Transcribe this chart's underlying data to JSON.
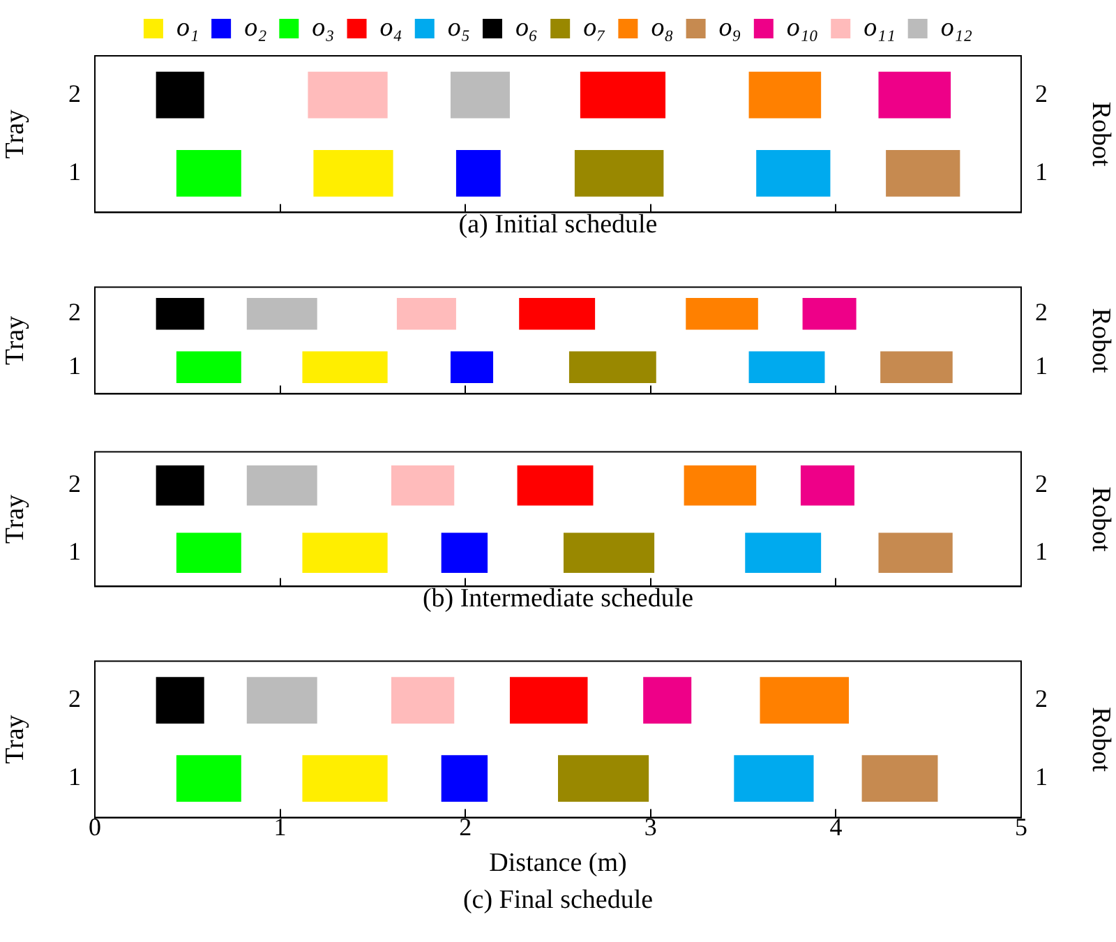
{
  "chart_data": [
    {
      "type": "bar",
      "orientation": "horizontal",
      "title": "(a) Initial schedule",
      "ylabel": "Tray",
      "y2label": "Robot",
      "categories": [
        "2",
        "1"
      ],
      "xlim": [
        0,
        5
      ],
      "xticks": [
        0,
        1,
        2,
        3,
        4,
        5
      ],
      "tick_labels": "y",
      "grid": false,
      "legend": "top",
      "series": [
        {
          "name": "o₁",
          "color": "#ffee00",
          "values": [
            null,
            0.43
          ],
          "base": [
            null,
            1.18
          ]
        },
        {
          "name": "o₂",
          "color": "#0000ff",
          "values": [
            null,
            0.24
          ],
          "base": [
            null,
            1.95
          ]
        },
        {
          "name": "o₃",
          "color": "#00ff00",
          "values": [
            null,
            0.35
          ],
          "base": [
            null,
            0.44
          ]
        },
        {
          "name": "o₄",
          "color": "#ff0000",
          "values": [
            0.46,
            null
          ],
          "base": [
            2.62,
            null
          ]
        },
        {
          "name": "o₅",
          "color": "#00aaee",
          "values": [
            null,
            0.4
          ],
          "base": [
            null,
            3.57
          ]
        },
        {
          "name": "o₆",
          "color": "#000000",
          "values": [
            0.26,
            null
          ],
          "base": [
            0.33,
            null
          ]
        },
        {
          "name": "o₇",
          "color": "#998800",
          "values": [
            null,
            0.48
          ],
          "base": [
            null,
            2.59
          ]
        },
        {
          "name": "o₈",
          "color": "#ff8000",
          "values": [
            0.39,
            null
          ],
          "base": [
            3.53,
            null
          ]
        },
        {
          "name": "o₉",
          "color": "#c68a50",
          "values": [
            null,
            0.4
          ],
          "base": [
            null,
            4.27
          ]
        },
        {
          "name": "o₁₀",
          "color": "#ee0088",
          "values": [
            0.39,
            null
          ],
          "base": [
            4.23,
            null
          ]
        },
        {
          "name": "o₁₁",
          "color": "#ffbbbb",
          "values": [
            0.43,
            null
          ],
          "base": [
            1.15,
            null
          ]
        },
        {
          "name": "o₁₂",
          "color": "#bbbbbb",
          "values": [
            0.32,
            null
          ],
          "base": [
            1.92,
            null
          ]
        }
      ]
    },
    {
      "type": "bar",
      "orientation": "horizontal",
      "ylabel": "Tray",
      "y2label": "Robot",
      "categories": [
        "2",
        "1"
      ],
      "xlim": [
        0,
        5
      ],
      "xticks": [
        0,
        1,
        2,
        3,
        4,
        5
      ],
      "tick_labels": "y",
      "grid": false,
      "series": [
        {
          "color": "#ffee00",
          "values": [
            null,
            0.46
          ],
          "base": [
            null,
            1.12
          ]
        },
        {
          "color": "#0000ff",
          "values": [
            null,
            0.23
          ],
          "base": [
            null,
            1.92
          ]
        },
        {
          "color": "#00ff00",
          "values": [
            null,
            0.35
          ],
          "base": [
            null,
            0.44
          ]
        },
        {
          "color": "#ff0000",
          "values": [
            0.41,
            null
          ],
          "base": [
            2.29,
            null
          ]
        },
        {
          "color": "#00aaee",
          "values": [
            null,
            0.41
          ],
          "base": [
            null,
            3.53
          ]
        },
        {
          "color": "#000000",
          "values": [
            0.26,
            null
          ],
          "base": [
            0.33,
            null
          ]
        },
        {
          "color": "#998800",
          "values": [
            null,
            0.47
          ],
          "base": [
            null,
            2.56
          ]
        },
        {
          "color": "#ff8000",
          "values": [
            0.39,
            null
          ],
          "base": [
            3.19,
            null
          ]
        },
        {
          "color": "#c68a50",
          "values": [
            null,
            0.39
          ],
          "base": [
            null,
            4.24
          ]
        },
        {
          "color": "#ee0088",
          "values": [
            0.29,
            null
          ],
          "base": [
            3.82,
            null
          ]
        },
        {
          "color": "#ffbbbb",
          "values": [
            0.32,
            null
          ],
          "base": [
            1.63,
            null
          ]
        },
        {
          "color": "#bbbbbb",
          "values": [
            0.38,
            null
          ],
          "base": [
            0.82,
            null
          ]
        }
      ]
    },
    {
      "type": "bar",
      "orientation": "horizontal",
      "title": "(b) Intermediate schedule",
      "ylabel": "Tray",
      "y2label": "Robot",
      "categories": [
        "2",
        "1"
      ],
      "xlim": [
        0,
        5
      ],
      "xticks": [
        0,
        1,
        2,
        3,
        4,
        5
      ],
      "tick_labels": "y",
      "grid": false,
      "series": [
        {
          "color": "#ffee00",
          "values": [
            null,
            0.46
          ],
          "base": [
            null,
            1.12
          ]
        },
        {
          "color": "#0000ff",
          "values": [
            null,
            0.25
          ],
          "base": [
            null,
            1.87
          ]
        },
        {
          "color": "#00ff00",
          "values": [
            null,
            0.35
          ],
          "base": [
            null,
            0.44
          ]
        },
        {
          "color": "#ff0000",
          "values": [
            0.41,
            null
          ],
          "base": [
            2.28,
            null
          ]
        },
        {
          "color": "#00aaee",
          "values": [
            null,
            0.41
          ],
          "base": [
            null,
            3.51
          ]
        },
        {
          "color": "#000000",
          "values": [
            0.26,
            null
          ],
          "base": [
            0.33,
            null
          ]
        },
        {
          "color": "#998800",
          "values": [
            null,
            0.49
          ],
          "base": [
            null,
            2.53
          ]
        },
        {
          "color": "#ff8000",
          "values": [
            0.39,
            null
          ],
          "base": [
            3.18,
            null
          ]
        },
        {
          "color": "#c68a50",
          "values": [
            null,
            0.4
          ],
          "base": [
            null,
            4.23
          ]
        },
        {
          "color": "#ee0088",
          "values": [
            0.29,
            null
          ],
          "base": [
            3.81,
            null
          ]
        },
        {
          "color": "#ffbbbb",
          "values": [
            0.34,
            null
          ],
          "base": [
            1.6,
            null
          ]
        },
        {
          "color": "#bbbbbb",
          "values": [
            0.38,
            null
          ],
          "base": [
            0.82,
            null
          ]
        }
      ]
    },
    {
      "type": "bar",
      "orientation": "horizontal",
      "title": "(c) Final schedule",
      "xlabel": "Distance (m)",
      "ylabel": "Tray",
      "y2label": "Robot",
      "categories": [
        "2",
        "1"
      ],
      "xlim": [
        0,
        5
      ],
      "xticks": [
        0,
        1,
        2,
        3,
        4,
        5
      ],
      "grid": false,
      "series": [
        {
          "color": "#ffee00",
          "values": [
            null,
            0.46
          ],
          "base": [
            null,
            1.12
          ]
        },
        {
          "color": "#0000ff",
          "values": [
            null,
            0.25
          ],
          "base": [
            null,
            1.87
          ]
        },
        {
          "color": "#00ff00",
          "values": [
            null,
            0.35
          ],
          "base": [
            null,
            0.44
          ]
        },
        {
          "color": "#ff0000",
          "values": [
            0.42,
            null
          ],
          "base": [
            2.24,
            null
          ]
        },
        {
          "color": "#00aaee",
          "values": [
            null,
            0.43
          ],
          "base": [
            null,
            3.45
          ]
        },
        {
          "color": "#000000",
          "values": [
            0.26,
            null
          ],
          "base": [
            0.33,
            null
          ]
        },
        {
          "color": "#998800",
          "values": [
            null,
            0.49
          ],
          "base": [
            null,
            2.5
          ]
        },
        {
          "color": "#ff8000",
          "values": [
            0.48,
            null
          ],
          "base": [
            3.59,
            null
          ]
        },
        {
          "color": "#c68a50",
          "values": [
            null,
            0.41
          ],
          "base": [
            null,
            4.14
          ]
        },
        {
          "color": "#ee0088",
          "values": [
            0.26,
            null
          ],
          "base": [
            2.96,
            null
          ]
        },
        {
          "color": "#ffbbbb",
          "values": [
            0.34,
            null
          ],
          "base": [
            1.6,
            null
          ]
        },
        {
          "color": "#bbbbbb",
          "values": [
            0.38,
            null
          ],
          "base": [
            0.82,
            null
          ]
        }
      ]
    }
  ]
}
